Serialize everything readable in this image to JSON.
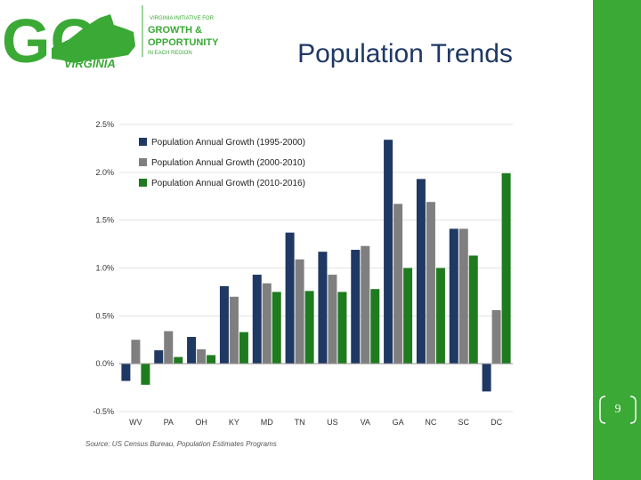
{
  "header": {
    "logo_go": "GO",
    "logo_virginia": "VIRGINIA",
    "tagline_1": "VIRGINIA INITIATIVE FOR",
    "tagline_2": "GROWTH &",
    "tagline_3": "OPPORTUNITY",
    "tagline_4": "IN EACH REGION"
  },
  "slide": {
    "title": "Population Trends",
    "page_number": "9"
  },
  "colors": {
    "series_1": "#1f3864",
    "series_2": "#7f7f7f",
    "series_3": "#1e7b1e",
    "title": "#1f3864",
    "brand_green": "#3aa935"
  },
  "chart_data": {
    "type": "bar",
    "title": "",
    "xlabel": "",
    "ylabel": "",
    "ylim": [
      -0.5,
      2.5
    ],
    "yticks": [
      -0.5,
      0.0,
      0.5,
      1.0,
      1.5,
      2.0,
      2.5
    ],
    "ytick_labels": [
      "-0.5%",
      "0.0%",
      "0.5%",
      "1.0%",
      "1.5%",
      "2.0%",
      "2.5%"
    ],
    "categories": [
      "WV",
      "PA",
      "OH",
      "KY",
      "MD",
      "TN",
      "US",
      "VA",
      "GA",
      "NC",
      "SC",
      "DC"
    ],
    "series": [
      {
        "name": "Population Annual Growth (1995-2000)",
        "values": [
          -0.18,
          0.14,
          0.28,
          0.81,
          0.93,
          1.37,
          1.17,
          1.19,
          2.34,
          1.93,
          1.41,
          -0.29
        ]
      },
      {
        "name": "Population Annual Growth (2000-2010)",
        "values": [
          0.25,
          0.34,
          0.15,
          0.7,
          0.84,
          1.09,
          0.93,
          1.23,
          1.67,
          1.69,
          1.41,
          0.56
        ]
      },
      {
        "name": "Population Annual Growth (2010-2016)",
        "values": [
          -0.22,
          0.07,
          0.09,
          0.33,
          0.75,
          0.76,
          0.75,
          0.78,
          1.0,
          1.0,
          1.13,
          1.99
        ]
      }
    ],
    "legend_position": "top-left",
    "source": "Source: US Census Bureau, Population Estimates Programs"
  }
}
